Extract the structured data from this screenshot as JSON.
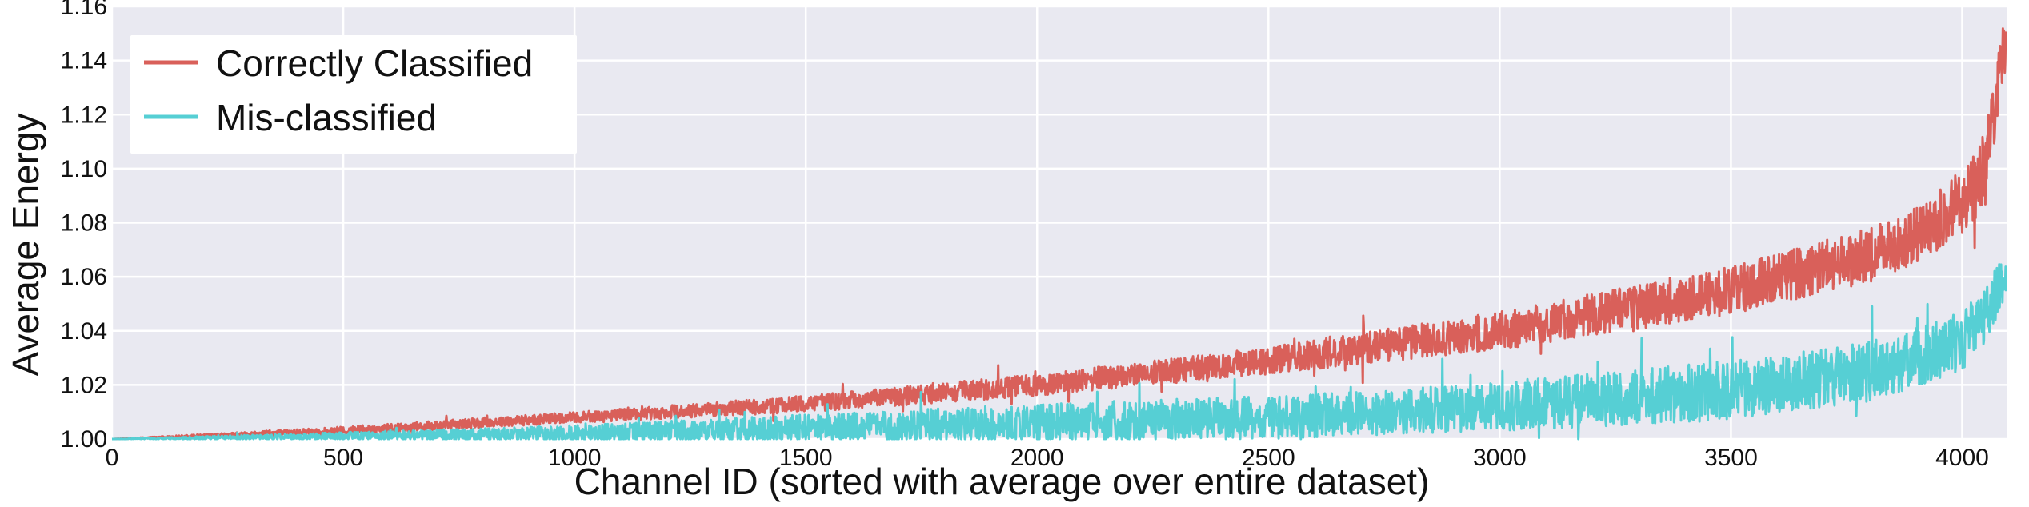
{
  "chart_data": {
    "type": "line",
    "title": "",
    "xlabel": "Channel ID (sorted with average over entire dataset)",
    "ylabel": "Average Energy",
    "xlim": [
      0,
      4096
    ],
    "ylim": [
      1.0,
      1.16
    ],
    "x_ticks": [
      0,
      500,
      1000,
      1500,
      2000,
      2500,
      3000,
      3500,
      4000
    ],
    "x_tick_labels": [
      "0",
      "500",
      "1000",
      "1500",
      "2000",
      "2500",
      "3000",
      "3500",
      "4000"
    ],
    "y_ticks": [
      1.0,
      1.02,
      1.04,
      1.06,
      1.08,
      1.1,
      1.12,
      1.14,
      1.16
    ],
    "y_tick_labels": [
      "1.00",
      "1.02",
      "1.04",
      "1.06",
      "1.08",
      "1.10",
      "1.12",
      "1.14",
      "1.16"
    ],
    "grid": true,
    "legend_position": "top-left",
    "n_points": 4096,
    "series": [
      {
        "name": "Correctly Classified",
        "color": "#d9605a",
        "trend_x": [
          0,
          500,
          1000,
          1500,
          2000,
          2500,
          3000,
          3500,
          3800,
          3900,
          4000,
          4050,
          4096
        ],
        "trend_y": [
          1.0,
          1.003,
          1.008,
          1.013,
          1.02,
          1.029,
          1.04,
          1.055,
          1.068,
          1.075,
          1.088,
          1.1,
          1.15
        ],
        "noise_amplitude": [
          0.0,
          0.0015,
          0.002,
          0.003,
          0.004,
          0.005,
          0.007,
          0.009,
          0.01,
          0.011,
          0.012,
          0.014,
          0.01
        ]
      },
      {
        "name": "Mis-classified",
        "color": "#56cfd4",
        "trend_x": [
          0,
          500,
          1000,
          1500,
          2000,
          2500,
          3000,
          3500,
          3800,
          3900,
          4000,
          4050,
          4096
        ],
        "trend_y": [
          1.0,
          1.001,
          1.002,
          1.004,
          1.006,
          1.008,
          1.012,
          1.018,
          1.025,
          1.03,
          1.036,
          1.045,
          1.062
        ],
        "noise_amplitude": [
          0.0,
          0.0015,
          0.003,
          0.005,
          0.007,
          0.008,
          0.009,
          0.011,
          0.011,
          0.011,
          0.011,
          0.011,
          0.008
        ]
      }
    ]
  }
}
